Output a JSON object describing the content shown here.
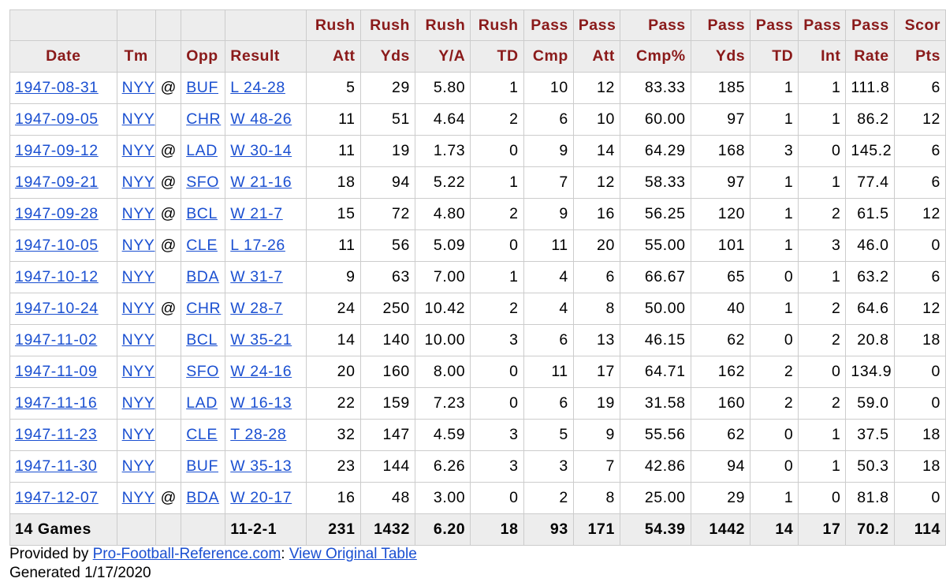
{
  "over_headers": [
    "",
    "",
    "",
    "",
    "",
    "Rush",
    "Rush",
    "Rush",
    "Rush",
    "Pass",
    "Pass",
    "Pass",
    "Pass",
    "Pass",
    "Pass",
    "Pass",
    "Scor"
  ],
  "headers": [
    "Date",
    "Tm",
    "",
    "Opp",
    "Result",
    "Att",
    "Yds",
    "Y/A",
    "TD",
    "Cmp",
    "Att",
    "Cmp%",
    "Yds",
    "TD",
    "Int",
    "Rate",
    "Pts"
  ],
  "rows": [
    [
      "1947-08-31",
      "NYY",
      "@",
      "BUF",
      "L 24-28",
      "5",
      "29",
      "5.80",
      "1",
      "10",
      "12",
      "83.33",
      "185",
      "1",
      "1",
      "111.8",
      "6"
    ],
    [
      "1947-09-05",
      "NYY",
      "",
      "CHR",
      "W 48-26",
      "11",
      "51",
      "4.64",
      "2",
      "6",
      "10",
      "60.00",
      "97",
      "1",
      "1",
      "86.2",
      "12"
    ],
    [
      "1947-09-12",
      "NYY",
      "@",
      "LAD",
      "W 30-14",
      "11",
      "19",
      "1.73",
      "0",
      "9",
      "14",
      "64.29",
      "168",
      "3",
      "0",
      "145.2",
      "6"
    ],
    [
      "1947-09-21",
      "NYY",
      "@",
      "SFO",
      "W 21-16",
      "18",
      "94",
      "5.22",
      "1",
      "7",
      "12",
      "58.33",
      "97",
      "1",
      "1",
      "77.4",
      "6"
    ],
    [
      "1947-09-28",
      "NYY",
      "@",
      "BCL",
      "W 21-7",
      "15",
      "72",
      "4.80",
      "2",
      "9",
      "16",
      "56.25",
      "120",
      "1",
      "2",
      "61.5",
      "12"
    ],
    [
      "1947-10-05",
      "NYY",
      "@",
      "CLE",
      "L 17-26",
      "11",
      "56",
      "5.09",
      "0",
      "11",
      "20",
      "55.00",
      "101",
      "1",
      "3",
      "46.0",
      "0"
    ],
    [
      "1947-10-12",
      "NYY",
      "",
      "BDA",
      "W 31-7",
      "9",
      "63",
      "7.00",
      "1",
      "4",
      "6",
      "66.67",
      "65",
      "0",
      "1",
      "63.2",
      "6"
    ],
    [
      "1947-10-24",
      "NYY",
      "@",
      "CHR",
      "W 28-7",
      "24",
      "250",
      "10.42",
      "2",
      "4",
      "8",
      "50.00",
      "40",
      "1",
      "2",
      "64.6",
      "12"
    ],
    [
      "1947-11-02",
      "NYY",
      "",
      "BCL",
      "W 35-21",
      "14",
      "140",
      "10.00",
      "3",
      "6",
      "13",
      "46.15",
      "62",
      "0",
      "2",
      "20.8",
      "18"
    ],
    [
      "1947-11-09",
      "NYY",
      "",
      "SFO",
      "W 24-16",
      "20",
      "160",
      "8.00",
      "0",
      "11",
      "17",
      "64.71",
      "162",
      "2",
      "0",
      "134.9",
      "0"
    ],
    [
      "1947-11-16",
      "NYY",
      "",
      "LAD",
      "W 16-13",
      "22",
      "159",
      "7.23",
      "0",
      "6",
      "19",
      "31.58",
      "160",
      "2",
      "2",
      "59.0",
      "0"
    ],
    [
      "1947-11-23",
      "NYY",
      "",
      "CLE",
      "T 28-28",
      "32",
      "147",
      "4.59",
      "3",
      "5",
      "9",
      "55.56",
      "62",
      "0",
      "1",
      "37.5",
      "18"
    ],
    [
      "1947-11-30",
      "NYY",
      "",
      "BUF",
      "W 35-13",
      "23",
      "144",
      "6.26",
      "3",
      "3",
      "7",
      "42.86",
      "94",
      "0",
      "1",
      "50.3",
      "18"
    ],
    [
      "1947-12-07",
      "NYY",
      "@",
      "BDA",
      "W 20-17",
      "16",
      "48",
      "3.00",
      "0",
      "2",
      "8",
      "25.00",
      "29",
      "1",
      "0",
      "81.8",
      "0"
    ]
  ],
  "footer": [
    "14 Games",
    "",
    "",
    "",
    "11-2-1",
    "231",
    "1432",
    "6.20",
    "18",
    "93",
    "171",
    "54.39",
    "1442",
    "14",
    "17",
    "70.2",
    "114"
  ],
  "source": {
    "prefix": "Provided by ",
    "site_link": "Pro-Football-Reference.com",
    "sep": ": ",
    "view_link": "View Original Table"
  },
  "cut_text": "Generated 1/17/2020",
  "colors": {
    "header_text": "#8a1a1a",
    "link": "#1a4fd1",
    "header_bg": "#ededed",
    "border": "#cccccc"
  }
}
